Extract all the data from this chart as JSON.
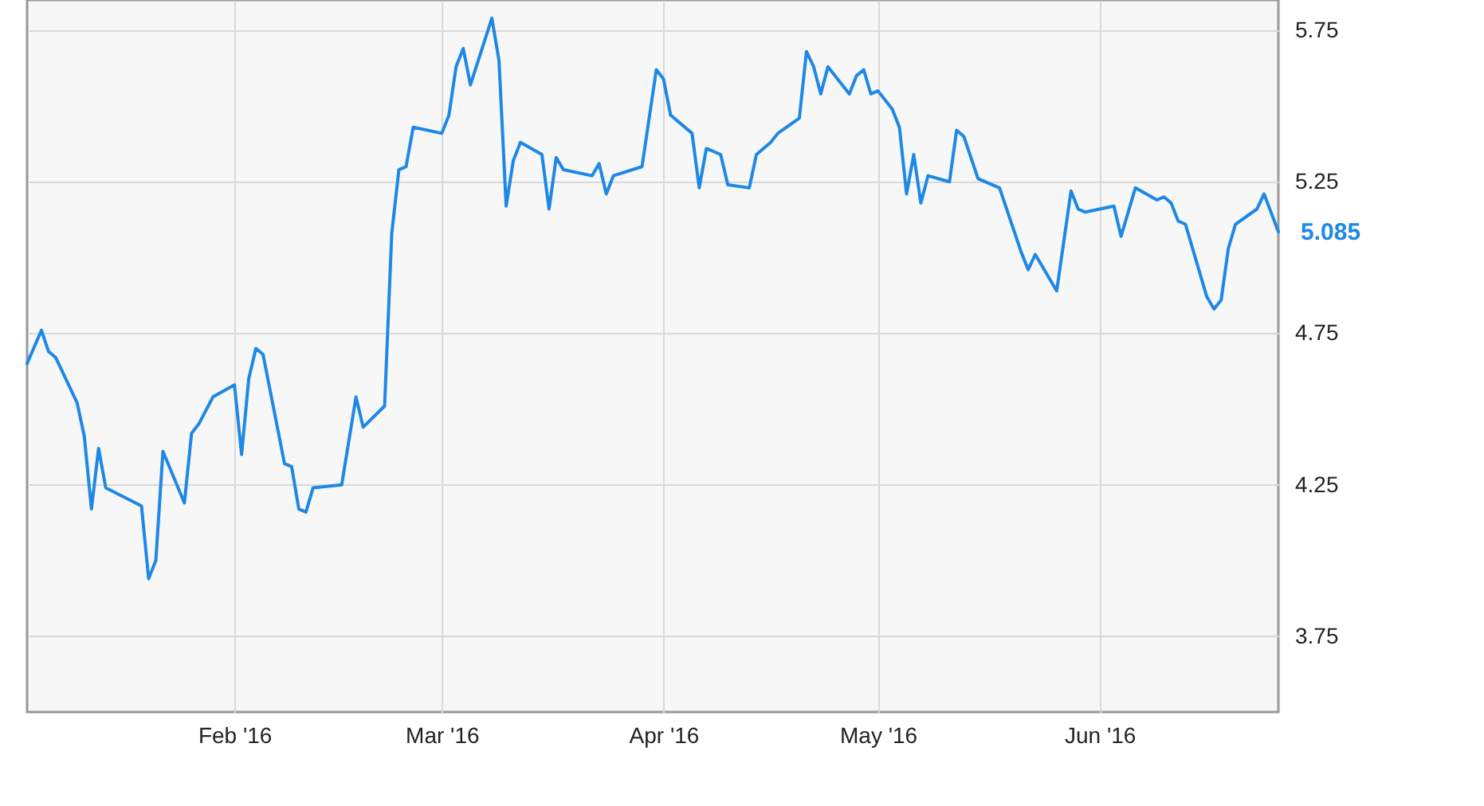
{
  "chart_data": {
    "type": "line",
    "x": [
      "2016-01-03",
      "2016-01-05",
      "2016-01-06",
      "2016-01-07",
      "2016-01-10",
      "2016-01-11",
      "2016-01-12",
      "2016-01-13",
      "2016-01-14",
      "2016-01-19",
      "2016-01-20",
      "2016-01-21",
      "2016-01-22",
      "2016-01-25",
      "2016-01-26",
      "2016-01-27",
      "2016-01-29",
      "2016-02-01",
      "2016-02-02",
      "2016-02-03",
      "2016-02-04",
      "2016-02-05",
      "2016-02-08",
      "2016-02-09",
      "2016-02-10",
      "2016-02-11",
      "2016-02-12",
      "2016-02-16",
      "2016-02-18",
      "2016-02-19",
      "2016-02-22",
      "2016-02-23",
      "2016-02-24",
      "2016-02-25",
      "2016-02-26",
      "2016-03-01",
      "2016-03-02",
      "2016-03-03",
      "2016-03-04",
      "2016-03-05",
      "2016-03-08",
      "2016-03-09",
      "2016-03-10",
      "2016-03-11",
      "2016-03-12",
      "2016-03-15",
      "2016-03-16",
      "2016-03-17",
      "2016-03-18",
      "2016-03-22",
      "2016-03-23",
      "2016-03-24",
      "2016-03-25",
      "2016-03-29",
      "2016-03-31",
      "2016-04-01",
      "2016-04-02",
      "2016-04-05",
      "2016-04-06",
      "2016-04-07",
      "2016-04-09",
      "2016-04-10",
      "2016-04-13",
      "2016-04-14",
      "2016-04-16",
      "2016-04-17",
      "2016-04-20",
      "2016-04-21",
      "2016-04-22",
      "2016-04-23",
      "2016-04-24",
      "2016-04-27",
      "2016-04-28",
      "2016-04-29",
      "2016-04-30",
      "2016-05-01",
      "2016-05-03",
      "2016-05-04",
      "2016-05-05",
      "2016-05-06",
      "2016-05-07",
      "2016-05-08",
      "2016-05-11",
      "2016-05-12",
      "2016-05-13",
      "2016-05-15",
      "2016-05-18",
      "2016-05-21",
      "2016-05-22",
      "2016-05-23",
      "2016-05-26",
      "2016-05-28",
      "2016-05-29",
      "2016-05-30",
      "2016-06-03",
      "2016-06-04",
      "2016-06-06",
      "2016-06-09",
      "2016-06-10",
      "2016-06-11",
      "2016-06-12",
      "2016-06-13",
      "2016-06-16",
      "2016-06-17",
      "2016-06-18",
      "2016-06-19",
      "2016-06-20",
      "2016-06-23",
      "2016-06-24",
      "2016-06-26"
    ],
    "series": [
      {
        "color": "#1e88e5",
        "values": [
          4.65,
          4.76,
          4.69,
          4.67,
          4.52,
          4.41,
          4.17,
          4.37,
          4.24,
          4.18,
          3.94,
          4.0,
          4.36,
          4.19,
          4.42,
          4.45,
          4.54,
          4.58,
          4.35,
          4.6,
          4.7,
          4.68,
          4.32,
          4.31,
          4.17,
          4.16,
          4.24,
          4.25,
          4.54,
          4.44,
          4.51,
          5.08,
          5.29,
          5.3,
          5.43,
          5.41,
          5.47,
          5.63,
          5.69,
          5.57,
          5.79,
          5.65,
          5.17,
          5.32,
          5.38,
          5.34,
          5.16,
          5.33,
          5.29,
          5.27,
          5.31,
          5.21,
          5.27,
          5.3,
          5.62,
          5.59,
          5.47,
          5.41,
          5.23,
          5.36,
          5.34,
          5.24,
          5.23,
          5.34,
          5.38,
          5.41,
          5.46,
          5.68,
          5.63,
          5.54,
          5.63,
          5.54,
          5.6,
          5.62,
          5.54,
          5.55,
          5.49,
          5.43,
          5.21,
          5.34,
          5.18,
          5.27,
          5.25,
          5.42,
          5.4,
          5.26,
          5.23,
          5.02,
          4.96,
          5.01,
          4.89,
          5.22,
          5.16,
          5.15,
          5.17,
          5.07,
          5.23,
          5.19,
          5.2,
          5.18,
          5.12,
          5.11,
          4.87,
          4.83,
          4.86,
          5.03,
          5.11,
          5.16,
          5.21,
          5.085
        ]
      }
    ],
    "xlim": [
      "2016-01-03",
      "2016-06-26"
    ],
    "xticks": [
      {
        "value": "2016-02-01",
        "label": "Feb '16"
      },
      {
        "value": "2016-03-01",
        "label": "Mar '16"
      },
      {
        "value": "2016-04-01",
        "label": "Apr '16"
      },
      {
        "value": "2016-05-01",
        "label": "May '16"
      },
      {
        "value": "2016-06-01",
        "label": "Jun '16"
      }
    ],
    "ylim": [
      3.5,
      5.85
    ],
    "yticks": [
      3.75,
      4.25,
      4.75,
      5.25,
      5.75
    ],
    "grid": true,
    "marker": "none",
    "line_style": "solid",
    "annotations": [
      {
        "text": "5.085",
        "x": "2016-06-26",
        "y": 5.085
      }
    ]
  }
}
